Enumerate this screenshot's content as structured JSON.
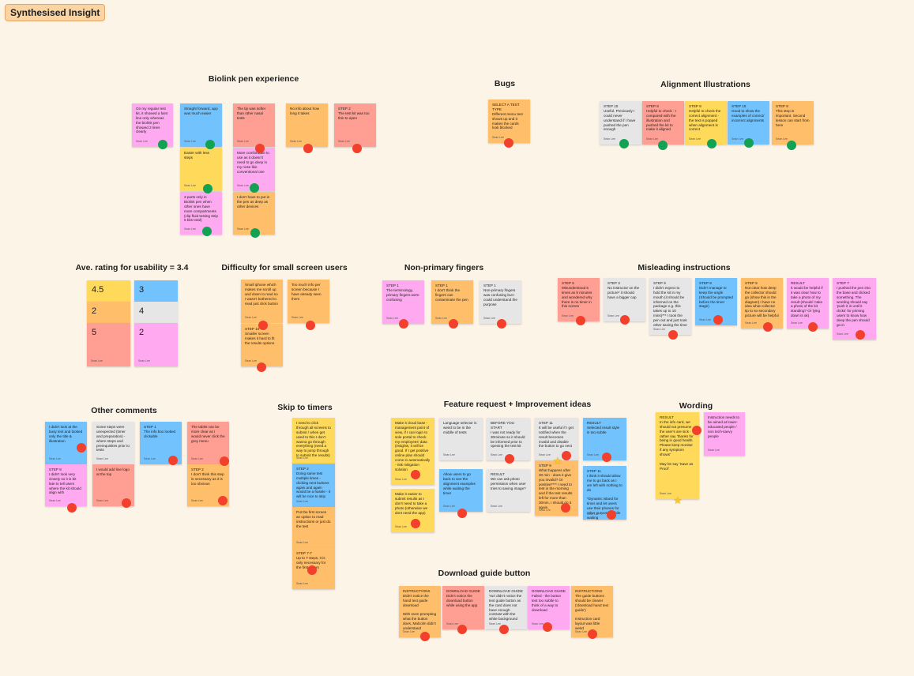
{
  "board_title": "Synthesised Insight",
  "sections": {
    "biolink": "Biolink pen experience",
    "bugs": "Bugs",
    "alignment": "Alignment Illustrations",
    "rating": "Ave. rating for usability = 3.4",
    "difficulty": "Difficulty for small screen users",
    "nonprimary": "Non-primary fingers",
    "misleading": "Misleading instructions",
    "other": "Other comments",
    "skip": "Skip to timers",
    "feature": "Feature request + Improvement ideas",
    "wording": "Wording",
    "download": "Download guide button"
  },
  "author_label": "Sean Lee",
  "notes": {
    "bp1": "On my regular test kit, it showed a faint line only whereas the biolink pen showed 2 lines clearly",
    "bp2": "Straight forward, app was much easier",
    "bp3": "Easier with less steps",
    "bp4": "3 parts only in Biolink pen when other ones have more compartments (clip fluid testing strip 5 bits total)",
    "bp5": "The tip was softer than other nasal tests",
    "bp6": "More comfortable to use as it doesn't need to go deep in my nose like conventional one",
    "bp7": "I don't have to put in the pen as deep as other devices",
    "bp8": "No info about how long it takes",
    "bp9": "STEP 2\nThe test kit was too thin to open",
    "bug1": "SELECT A TEST TYPE\nDifferent menu text shows up and it makes the cards look blocked",
    "al1": "STEP 10\nUseful. Previously I could never understand if I have pushed the pen enough",
    "al2": "STEP 8\nHelpful to check - I compared with the illustration and pushed the kit to make it aligned",
    "al3": "STEP 8\nHelpful to check the correct alignment - the text is popped when alignment is correct",
    "al4": "STEP 10\nGood to show the examples of correct/ incorrect alignments",
    "al5": "STEP 8\nThis step is important. Second lesson can start from here",
    "r1": "4.5",
    "r2": "2",
    "r3": "5",
    "r4": "3",
    "r5": "4",
    "r6": "2",
    "ds1": "Small iphone which makes me scroll up and down to read so I wasn't bothered to read just click button",
    "ds2": "STEP 10\nSmaller screen makes it hard to fit the results options",
    "ds3": "Too much info per screen because I have already seen them",
    "np1": "STEP 1\nThe terminology, primary fingers were confusing",
    "np2": "STEP 1\nI don't think the fingers can contaminate the pen",
    "np3": "STEP 1\nNon-primary fingers was confusing but I could understand the purpose",
    "mi1": "STEP 5\nMisunderstood 5 times as 5 minutes and wondered why there is no timer in this screen",
    "mi2": "STEP 3\nNo instructor on the picture* it should have a bigger cap",
    "mi3": "STEP 9\nI didn't expect to hold the kit in my mouth (it should be informed on the package e.g. this takes up to 10 mins)*** I took the pen out and just took other saving the time",
    "mi4": "STEP 8\nDidn't manage to keep the angle (Should be prompted before the timer stage)",
    "mi5": "STEP 5\nNot clear how deep the collector should go (show this in the diagram) I have no idea what collector tip to so secondary picture will be helpful",
    "mi6": "RESULT\nIt would be helpful if it was clear how to take a photo of my result (should I take a photo of the kit standing? Or lying down is ok)",
    "mi7": "STEP 7\nI pushed the pen into the base and clicked something. The wording should say 'push it in until it clicks' for priming users to know how deep the pen should go in",
    "oc1": "I didn't look at the busy text and looked only the title & illustration",
    "oc2": "STEP 8\nI didn't look very closely so it is bit late to tell users where the kit should align with",
    "oc3": "Some steps were unexpected (timer and preparation) - where steps and prerequisites prior to tests",
    "oc4": "I would add line logo at the top",
    "oc5": "STEP 1\nThe info box looked clickable",
    "oc6": "The tablet can be more clear as I would never click the grey menu",
    "oc7": "STEP 2\nI don't think this step is necessary as it is too obvious",
    "sk1": "I need to click through all screens to submit / when get used to this I don't wanna go through everything (need a way to jump through to submit the results)",
    "sk2": "STEP 2\nDoing same test multiple times - clicking next buttons again and again would be a hassle - it will be nice to skip",
    "sk3": "Put the first screen an option to read instructions or just do the test",
    "sk4": "STEP 7-7\nUp to 7 steps, it is only necessary for the first timers",
    "fr1": "Make it cloud base - management point of view, if I can login to sole portal to check my employees' data (insights, it will be good. If I get positive online plan should come in automatically - risk mitigation solution",
    "fr2": "Make it easier to submit results as I don't need to take a photo (otherwise we dont need the app)",
    "fr3": "Language selector is weird to be in the middle of tests",
    "fr4": "Allow users to go back to see the alignment examples while waiting the timer",
    "fr5": "BEFORE YOU START\nI was not ready for 30minute so it should be informed prior to opening the test kit",
    "fr6": "RESULT\nWe can ask photo permission when user tries to saving image?",
    "fr7": "STEP 11\nIt will be useful if I get notified when the result becomes invalid and disable the button to go next",
    "fr8": "STEP 9\nWhat happens after 30 min - does it give you invalid? Or positive**** I need to test in the morning and if the test results left for more than 30min, I should do it again.",
    "fr9": "RESULT\nSelected result style is too subtle",
    "fr10": "STEP 11\nI think it should allow me to go back as I am left with nothing to do\n\n*Dynamic island for timer and let users use their phones for other purposes while waiting",
    "wd1": "RESULT\nIn the info card, we should not presume the user's are sick - rather say 'thanks for being in good health. Please keep monitor if any symptom shows'\n\nMay be say 'Save as Proof'",
    "wd2": "Instruction needs to be aimed at lower-educated people / non tech-savvy people",
    "dl1": "INSTRUCTIONS\nDidn't notice the hand text guide download\n\nWith even prompting what the button does, Malcolm didn't understand",
    "dl2": "DOWNLOAD GUIDE\nDidn't notice the download button while using the app",
    "dl3": "DOWNLOAD GUIDE\nYuri didn't notice the text guide button as the card does not have enough contrast with the white background",
    "dl4": "DOWNLOAD GUIDE\nFailed - the button text too subtle to think of a way to download",
    "dl5": "INSTRUCTIONS\nThe guide buttons should be clearer ('download hand text guide')\n\nInstruction card layout was little weird"
  }
}
